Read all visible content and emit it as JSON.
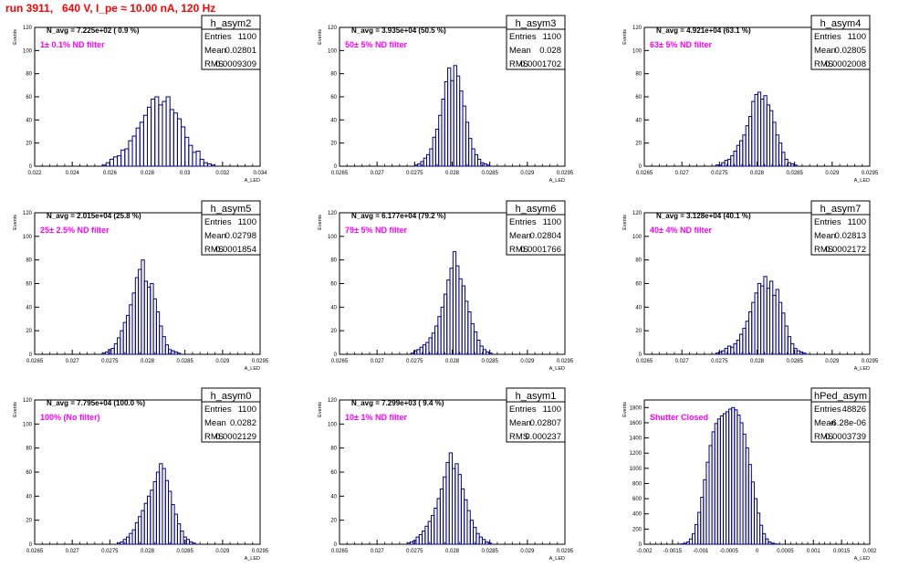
{
  "header": {
    "title": "run 3911,   640 V, I_pe ≈ 10.00 nA, 120 Hz"
  },
  "colors": {
    "title": "#ff0000",
    "annotation": "#ff00ff",
    "hist": "#00008b",
    "axis": "#000000"
  },
  "chart_data": [
    {
      "type": "bar",
      "hist": "h_asym2",
      "navg": "N_avg = 7.225e+02 ( 0.9 %)",
      "filter": "1± 0.1% ND filter",
      "stats": [
        [
          "Entries",
          "1100"
        ],
        [
          "Mean",
          "0.02801"
        ],
        [
          "RMS",
          "0.0009309"
        ]
      ],
      "ylabel": "Events",
      "xlabel": "A_LED",
      "xlim": [
        0.022,
        0.034
      ],
      "ylim": [
        0,
        120
      ],
      "xticks": [
        "0.022",
        "0.024",
        "0.026",
        "0.028",
        "0.03",
        "0.032",
        "0.034"
      ],
      "yticks": [
        "0",
        "20",
        "40",
        "60",
        "80",
        "100",
        "120"
      ],
      "bins": {
        "start": 0.0256,
        "width": 0.0002,
        "values": [
          1,
          3,
          6,
          8,
          9,
          14,
          15,
          22,
          26,
          33,
          38,
          44,
          51,
          58,
          60,
          53,
          56,
          60,
          49,
          46,
          41,
          34,
          25,
          18,
          12,
          13,
          6,
          3,
          2,
          1
        ]
      }
    },
    {
      "type": "bar",
      "hist": "h_asym3",
      "navg": "N_avg = 3.935e+04 (50.5 %)",
      "filter": "50± 5% ND filter",
      "stats": [
        [
          "Entries",
          "1100"
        ],
        [
          "Mean",
          "0.028"
        ],
        [
          "RMS",
          "0.0001702"
        ]
      ],
      "ylabel": "Events",
      "xlabel": "A_LED",
      "xlim": [
        0.0265,
        0.0295
      ],
      "ylim": [
        0,
        120
      ],
      "xticks": [
        "0.0265",
        "0.027",
        "0.0275",
        "0.028",
        "0.0285",
        "0.029",
        "0.0295"
      ],
      "yticks": [
        "0",
        "20",
        "40",
        "60",
        "80",
        "100",
        "120"
      ],
      "bins": {
        "start": 0.0275,
        "width": 4e-05,
        "values": [
          1,
          2,
          4,
          7,
          10,
          15,
          25,
          32,
          44,
          58,
          73,
          85,
          74,
          87,
          78,
          65,
          52,
          38,
          24,
          15,
          10,
          6,
          3,
          2,
          1
        ]
      }
    },
    {
      "type": "bar",
      "hist": "h_asym4",
      "navg": "N_avg = 4.921e+04 (63.1 %)",
      "filter": "63± 5% ND filter",
      "stats": [
        [
          "Entries",
          "1100"
        ],
        [
          "Mean",
          "0.02805"
        ],
        [
          "RMS",
          "0.0002008"
        ]
      ],
      "ylabel": "Events",
      "xlabel": "A_LED",
      "xlim": [
        0.0265,
        0.0295
      ],
      "ylim": [
        0,
        120
      ],
      "xticks": [
        "0.0265",
        "0.027",
        "0.0275",
        "0.028",
        "0.0285",
        "0.029",
        "0.0295"
      ],
      "yticks": [
        "0",
        "20",
        "40",
        "60",
        "80",
        "100",
        "120"
      ],
      "bins": {
        "start": 0.02745,
        "width": 4e-05,
        "values": [
          1,
          1,
          3,
          5,
          6,
          9,
          13,
          18,
          22,
          27,
          35,
          43,
          56,
          62,
          64,
          58,
          61,
          53,
          48,
          38,
          27,
          20,
          12,
          6,
          3,
          2,
          1
        ]
      }
    },
    {
      "type": "bar",
      "hist": "h_asym5",
      "navg": "N_avg = 2.015e+04 (25.8 %)",
      "filter": "25± 2.5% ND filter",
      "stats": [
        [
          "Entries",
          "1100"
        ],
        [
          "Mean",
          "0.02798"
        ],
        [
          "RMS",
          "0.0001854"
        ]
      ],
      "ylabel": "Events",
      "xlabel": "A_LED",
      "xlim": [
        0.0265,
        0.0295
      ],
      "ylim": [
        0,
        120
      ],
      "xticks": [
        "0.0265",
        "0.027",
        "0.0275",
        "0.028",
        "0.0285",
        "0.029",
        "0.0295"
      ],
      "yticks": [
        "0",
        "20",
        "40",
        "60",
        "80",
        "100",
        "120"
      ],
      "bins": {
        "start": 0.0274,
        "width": 4e-05,
        "values": [
          1,
          2,
          4,
          5,
          9,
          14,
          20,
          27,
          33,
          42,
          52,
          65,
          72,
          80,
          62,
          57,
          60,
          47,
          36,
          24,
          15,
          8,
          4,
          3,
          2,
          1
        ]
      }
    },
    {
      "type": "bar",
      "hist": "h_asym6",
      "navg": "N_avg = 6.177e+04 (79.2 %)",
      "filter": "79± 5% ND filter",
      "stats": [
        [
          "Entries",
          "1100"
        ],
        [
          "Mean",
          "0.02804"
        ],
        [
          "RMS",
          "0.0001766"
        ]
      ],
      "ylabel": "Events",
      "xlabel": "A_LED",
      "xlim": [
        0.0265,
        0.0295
      ],
      "ylim": [
        0,
        120
      ],
      "xticks": [
        "0.0265",
        "0.027",
        "0.0275",
        "0.028",
        "0.0285",
        "0.029",
        "0.0295"
      ],
      "yticks": [
        "0",
        "20",
        "40",
        "60",
        "80",
        "100",
        "120"
      ],
      "bins": {
        "start": 0.02745,
        "width": 4e-05,
        "values": [
          1,
          3,
          4,
          6,
          8,
          10,
          14,
          18,
          24,
          32,
          40,
          51,
          63,
          73,
          87,
          75,
          64,
          58,
          45,
          36,
          26,
          19,
          12,
          7,
          4,
          2,
          1
        ]
      }
    },
    {
      "type": "bar",
      "hist": "h_asym7",
      "navg": "N_avg = 3.128e+04 (40.1 %)",
      "filter": "40± 4% ND filter",
      "stats": [
        [
          "Entries",
          "1100"
        ],
        [
          "Mean",
          "0.02813"
        ],
        [
          "RMS",
          "0.0002172"
        ]
      ],
      "ylabel": "Events",
      "xlabel": "A_LED",
      "xlim": [
        0.0265,
        0.0295
      ],
      "ylim": [
        0,
        120
      ],
      "xticks": [
        "0.0265",
        "0.027",
        "0.0275",
        "0.028",
        "0.0285",
        "0.029",
        "0.0295"
      ],
      "yticks": [
        "0",
        "20",
        "40",
        "60",
        "80",
        "100",
        "120"
      ],
      "bins": {
        "start": 0.02745,
        "width": 4e-05,
        "values": [
          1,
          2,
          3,
          5,
          7,
          6,
          9,
          12,
          17,
          22,
          28,
          36,
          44,
          52,
          60,
          58,
          66,
          56,
          62,
          50,
          55,
          44,
          35,
          24,
          15,
          9,
          5,
          3,
          2,
          1
        ]
      }
    },
    {
      "type": "bar",
      "hist": "h_asym0",
      "navg": "N_avg = 7.795e+04 (100.0 %)",
      "filter": "100% (No filter)",
      "stats": [
        [
          "Entries",
          "1100"
        ],
        [
          "Mean",
          "0.0282"
        ],
        [
          "RMS",
          "0.0002129"
        ]
      ],
      "ylabel": "Events",
      "xlabel": "A_LED",
      "xlim": [
        0.0265,
        0.0295
      ],
      "ylim": [
        0,
        120
      ],
      "xticks": [
        "0.0265",
        "0.027",
        "0.0275",
        "0.028",
        "0.0285",
        "0.029",
        "0.0295"
      ],
      "yticks": [
        "0",
        "20",
        "40",
        "60",
        "80",
        "100",
        "120"
      ],
      "bins": {
        "start": 0.0276,
        "width": 4e-05,
        "values": [
          1,
          2,
          4,
          6,
          9,
          12,
          18,
          23,
          28,
          34,
          40,
          45,
          52,
          60,
          67,
          63,
          53,
          44,
          33,
          25,
          17,
          11,
          6,
          4,
          2,
          1
        ]
      }
    },
    {
      "type": "bar",
      "hist": "h_asym1",
      "navg": "N_avg = 7.299e+03 ( 9.4 %)",
      "filter": "10± 1% ND filter",
      "stats": [
        [
          "Entries",
          "1100"
        ],
        [
          "Mean",
          "0.02807"
        ],
        [
          "RMS",
          "0.000237"
        ]
      ],
      "ylabel": "Events",
      "xlabel": "A_LED",
      "xlim": [
        0.0265,
        0.0295
      ],
      "ylim": [
        0,
        120
      ],
      "xticks": [
        "0.0265",
        "0.027",
        "0.0275",
        "0.028",
        "0.0285",
        "0.029",
        "0.0295"
      ],
      "yticks": [
        "0",
        "20",
        "40",
        "60",
        "80",
        "100",
        "120"
      ],
      "bins": {
        "start": 0.0274,
        "width": 4e-05,
        "values": [
          1,
          2,
          3,
          6,
          8,
          11,
          15,
          19,
          24,
          30,
          38,
          46,
          56,
          68,
          76,
          63,
          67,
          58,
          46,
          37,
          28,
          20,
          14,
          9,
          6,
          4,
          2,
          1
        ]
      }
    },
    {
      "type": "bar",
      "hist": "hPed_asym",
      "navg": "",
      "filter": "Shutter Closed",
      "stats": [
        [
          "Entries",
          "48826"
        ],
        [
          "Mean",
          "-6.28e-06"
        ],
        [
          "RMS",
          "0.0003739"
        ]
      ],
      "ylabel": "Events",
      "xlabel": "A_LED",
      "xlim": [
        -0.002,
        0.002
      ],
      "ylim": [
        0,
        1900
      ],
      "xticks": [
        "-0.002",
        "-0.0015",
        "-0.001",
        "-0.0005",
        "0",
        "0.0005",
        "0.001",
        "0.0015",
        "0.002"
      ],
      "yticks": [
        "0",
        "200",
        "400",
        "600",
        "800",
        "1000",
        "1200",
        "1400",
        "1600",
        "1800"
      ],
      "bins": {
        "start": -0.0014,
        "width": 5e-05,
        "values": [
          2,
          5,
          12,
          30,
          70,
          140,
          260,
          420,
          620,
          850,
          1080,
          1300,
          1480,
          1590,
          1650,
          1690,
          1720,
          1745,
          1780,
          1800,
          1770,
          1700,
          1600,
          1450,
          1270,
          1050,
          820,
          600,
          410,
          250,
          140,
          70,
          30,
          12,
          5,
          2
        ]
      }
    }
  ]
}
